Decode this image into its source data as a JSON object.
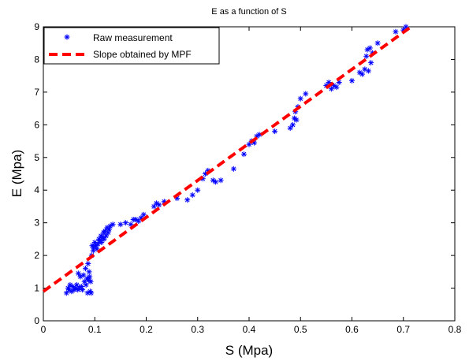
{
  "chart_data": {
    "type": "scatter",
    "title": "E as a function of S",
    "xlabel": "S (Mpa)",
    "ylabel": "E (Mpa)",
    "xlim": [
      0,
      0.8
    ],
    "ylim": [
      0,
      9
    ],
    "xticks": [
      "0",
      "0.1",
      "0.2",
      "0.3",
      "0.4",
      "0.5",
      "0.6",
      "0.7",
      "0.8"
    ],
    "yticks": [
      "0",
      "1",
      "2",
      "3",
      "4",
      "5",
      "6",
      "7",
      "8",
      "9"
    ],
    "grid": false,
    "legend_position": "top-left",
    "series": [
      {
        "name": "Raw measurement",
        "kind": "markers",
        "marker": "asterisk",
        "color": "#0000ff",
        "points": [
          [
            0.045,
            0.85
          ],
          [
            0.048,
            1.0
          ],
          [
            0.05,
            0.95
          ],
          [
            0.052,
            1.1
          ],
          [
            0.055,
            0.9
          ],
          [
            0.057,
            1.05
          ],
          [
            0.06,
            0.95
          ],
          [
            0.062,
            1.0
          ],
          [
            0.065,
            1.1
          ],
          [
            0.067,
            0.95
          ],
          [
            0.068,
            1.45
          ],
          [
            0.07,
            1.0
          ],
          [
            0.072,
            1.35
          ],
          [
            0.074,
            1.05
          ],
          [
            0.076,
            0.95
          ],
          [
            0.078,
            1.4
          ],
          [
            0.08,
            1.2
          ],
          [
            0.082,
            1.6
          ],
          [
            0.083,
            1.1
          ],
          [
            0.085,
            1.3
          ],
          [
            0.086,
            0.85
          ],
          [
            0.087,
            1.75
          ],
          [
            0.088,
            1.25
          ],
          [
            0.089,
            1.5
          ],
          [
            0.09,
            1.35
          ],
          [
            0.091,
            0.9
          ],
          [
            0.092,
            1.2
          ],
          [
            0.093,
            0.85
          ],
          [
            0.094,
            2.0
          ],
          [
            0.095,
            2.3
          ],
          [
            0.097,
            2.15
          ],
          [
            0.098,
            2.25
          ],
          [
            0.1,
            2.4
          ],
          [
            0.102,
            2.3
          ],
          [
            0.104,
            2.2
          ],
          [
            0.106,
            2.35
          ],
          [
            0.108,
            2.5
          ],
          [
            0.11,
            2.45
          ],
          [
            0.112,
            2.6
          ],
          [
            0.113,
            2.4
          ],
          [
            0.115,
            2.55
          ],
          [
            0.117,
            2.7
          ],
          [
            0.118,
            2.5
          ],
          [
            0.12,
            2.75
          ],
          [
            0.122,
            2.6
          ],
          [
            0.124,
            2.85
          ],
          [
            0.126,
            2.7
          ],
          [
            0.128,
            2.8
          ],
          [
            0.13,
            2.9
          ],
          [
            0.135,
            2.95
          ],
          [
            0.15,
            2.95
          ],
          [
            0.16,
            3.0
          ],
          [
            0.17,
            2.95
          ],
          [
            0.175,
            3.1
          ],
          [
            0.18,
            3.1
          ],
          [
            0.185,
            3.05
          ],
          [
            0.19,
            3.15
          ],
          [
            0.195,
            3.25
          ],
          [
            0.215,
            3.5
          ],
          [
            0.22,
            3.6
          ],
          [
            0.225,
            3.55
          ],
          [
            0.235,
            3.65
          ],
          [
            0.26,
            3.75
          ],
          [
            0.28,
            3.7
          ],
          [
            0.29,
            3.85
          ],
          [
            0.3,
            4.0
          ],
          [
            0.31,
            4.35
          ],
          [
            0.315,
            4.5
          ],
          [
            0.32,
            4.6
          ],
          [
            0.33,
            4.3
          ],
          [
            0.335,
            4.25
          ],
          [
            0.345,
            4.3
          ],
          [
            0.37,
            4.65
          ],
          [
            0.39,
            5.1
          ],
          [
            0.4,
            5.4
          ],
          [
            0.405,
            5.5
          ],
          [
            0.41,
            5.45
          ],
          [
            0.415,
            5.65
          ],
          [
            0.42,
            5.7
          ],
          [
            0.45,
            5.8
          ],
          [
            0.48,
            5.9
          ],
          [
            0.485,
            6.0
          ],
          [
            0.488,
            6.2
          ],
          [
            0.49,
            6.4
          ],
          [
            0.492,
            6.15
          ],
          [
            0.495,
            6.55
          ],
          [
            0.5,
            6.8
          ],
          [
            0.51,
            6.95
          ],
          [
            0.55,
            7.2
          ],
          [
            0.555,
            7.3
          ],
          [
            0.56,
            7.1
          ],
          [
            0.565,
            7.2
          ],
          [
            0.57,
            7.15
          ],
          [
            0.575,
            7.3
          ],
          [
            0.6,
            7.35
          ],
          [
            0.615,
            7.6
          ],
          [
            0.62,
            7.55
          ],
          [
            0.625,
            7.7
          ],
          [
            0.628,
            8.1
          ],
          [
            0.63,
            8.3
          ],
          [
            0.632,
            7.65
          ],
          [
            0.635,
            8.35
          ],
          [
            0.637,
            7.9
          ],
          [
            0.64,
            8.2
          ],
          [
            0.65,
            8.5
          ],
          [
            0.685,
            8.85
          ],
          [
            0.7,
            8.9
          ],
          [
            0.705,
            9.0
          ]
        ]
      },
      {
        "name": "Slope obtained by MPF",
        "kind": "line",
        "style": "dashed",
        "color": "#ff0000",
        "points": [
          [
            0,
            0.9
          ],
          [
            0.715,
            9.0
          ]
        ]
      }
    ]
  }
}
